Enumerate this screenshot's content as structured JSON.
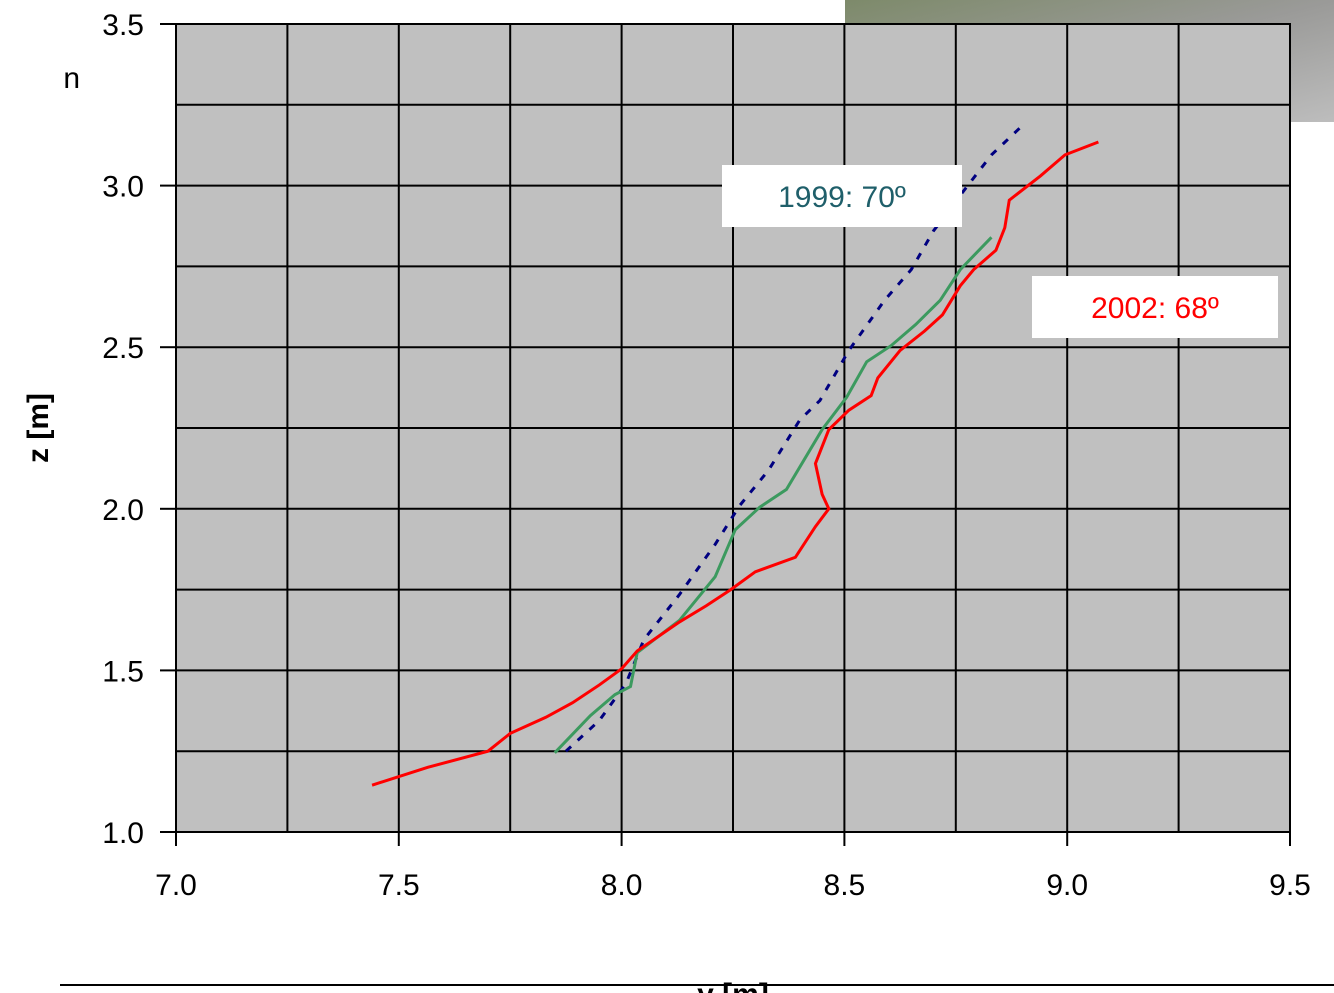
{
  "slide": {
    "fragment": "n"
  },
  "chart_data": {
    "type": "line",
    "xlabel": "y [m]",
    "ylabel": "z [m]",
    "xlim": [
      7.0,
      9.5
    ],
    "ylim": [
      1.0,
      3.5
    ],
    "xticks": [
      {
        "value": 7,
        "label": "7.0"
      },
      {
        "value": 7.5,
        "label": "7.5"
      },
      {
        "value": 8,
        "label": "8.0"
      },
      {
        "value": 8.5,
        "label": "8.5"
      },
      {
        "value": 9,
        "label": "9.0"
      },
      {
        "value": 9.5,
        "label": "9.5"
      }
    ],
    "yticks": [
      {
        "value": 1,
        "label": "1.0"
      },
      {
        "value": 1.5,
        "label": "1.5"
      },
      {
        "value": 2,
        "label": "2.0"
      },
      {
        "value": 2.5,
        "label": "2.5"
      },
      {
        "value": 3,
        "label": "3.0"
      },
      {
        "value": 3.5,
        "label": "3.5"
      }
    ],
    "xgrid": [
      7.25,
      7.75,
      8.25,
      8.75,
      9.25
    ],
    "ygrid": [
      1.25,
      1.75,
      2.25,
      2.75,
      3.25
    ],
    "grid": true,
    "background": "#c0c0c0",
    "series": [
      {
        "color": "#000080",
        "dash": true,
        "x": [
          7.875,
          7.95,
          8.01,
          8.05,
          8.13,
          8.21,
          8.265,
          8.33,
          8.4,
          8.445,
          8.51,
          8.59,
          8.65,
          8.7,
          8.76,
          8.83,
          8.895
        ],
        "y": [
          1.25,
          1.345,
          1.46,
          1.595,
          1.735,
          1.89,
          2.01,
          2.12,
          2.275,
          2.335,
          2.49,
          2.645,
          2.74,
          2.86,
          2.97,
          3.095,
          3.18
        ]
      },
      {
        "color": "#3c9a5f",
        "dash": false,
        "x": [
          7.85,
          7.93,
          7.985,
          8.02,
          8.035,
          8.13,
          8.21,
          8.255,
          8.31,
          8.37,
          8.45,
          8.505,
          8.55,
          8.605,
          8.66,
          8.715,
          8.76,
          8.83
        ],
        "y": [
          1.245,
          1.36,
          1.425,
          1.45,
          1.555,
          1.655,
          1.79,
          1.935,
          2.005,
          2.06,
          2.245,
          2.345,
          2.455,
          2.505,
          2.57,
          2.645,
          2.74,
          2.84
        ]
      },
      {
        "color": "#ff0000",
        "dash": false,
        "x": [
          7.44,
          7.565,
          7.7,
          7.75,
          7.83,
          7.89,
          7.95,
          8.0,
          8.035,
          8.13,
          8.19,
          8.245,
          8.3,
          8.39,
          8.435,
          8.465,
          8.45,
          8.435,
          8.465,
          8.51,
          8.56,
          8.575,
          8.625,
          8.68,
          8.72,
          8.76,
          8.79,
          8.84,
          8.86,
          8.87,
          8.94,
          8.995,
          9.07
        ],
        "y": [
          1.145,
          1.2,
          1.25,
          1.305,
          1.355,
          1.4,
          1.455,
          1.505,
          1.56,
          1.65,
          1.7,
          1.75,
          1.805,
          1.85,
          1.945,
          2.0,
          2.045,
          2.14,
          2.245,
          2.305,
          2.35,
          2.405,
          2.49,
          2.55,
          2.6,
          2.69,
          2.74,
          2.8,
          2.87,
          2.955,
          3.03,
          3.095,
          3.135
        ]
      }
    ],
    "annotations": [
      {
        "text": "1999: 70º",
        "color": "#1f5f6a"
      },
      {
        "text": "2002: 68º",
        "color": "#ff0000"
      }
    ]
  }
}
